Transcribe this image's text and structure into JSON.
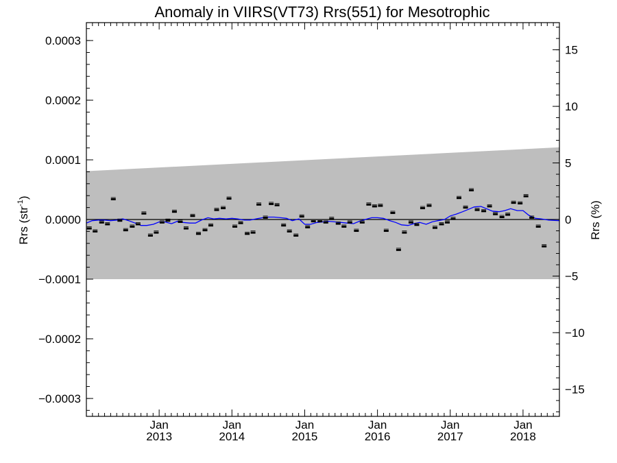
{
  "chart_data": {
    "type": "scatter",
    "title": "Anomaly in VIIRS(VT73) Rrs(551) for Mesotrophic",
    "ylabel_left": {
      "text": "Rrs (str",
      "sup": "-1",
      "close": ")"
    },
    "ylabel_right": "Rrs (%)",
    "xlim": [
      2012.0,
      2018.5
    ],
    "ylim": [
      -0.00033,
      0.00033
    ],
    "ylim_right_percent": [
      -17.4,
      17.4
    ],
    "y_ticks_left": [
      {
        "value": 0.0003,
        "label": "0.0003"
      },
      {
        "value": 0.0002,
        "label": "0.0002"
      },
      {
        "value": 0.0001,
        "label": "0.0001"
      },
      {
        "value": 0.0,
        "label": "0.0000"
      },
      {
        "value": -0.0001,
        "label": "−0.0001"
      },
      {
        "value": -0.0002,
        "label": "−0.0002"
      },
      {
        "value": -0.0003,
        "label": "−0.0003"
      }
    ],
    "y_ticks_right": [
      {
        "value": 15,
        "label": "15"
      },
      {
        "value": 10,
        "label": "10"
      },
      {
        "value": 5,
        "label": "5"
      },
      {
        "value": 0,
        "label": "0"
      },
      {
        "value": -5,
        "label": "−5"
      },
      {
        "value": -10,
        "label": "−10"
      },
      {
        "value": -15,
        "label": "−15"
      }
    ],
    "x_ticks": [
      {
        "value": 2013.0,
        "label_top": "Jan",
        "label_bottom": "2013"
      },
      {
        "value": 2014.0,
        "label_top": "Jan",
        "label_bottom": "2014"
      },
      {
        "value": 2015.0,
        "label_top": "Jan",
        "label_bottom": "2015"
      },
      {
        "value": 2016.0,
        "label_top": "Jan",
        "label_bottom": "2016"
      },
      {
        "value": 2017.0,
        "label_top": "Jan",
        "label_bottom": "2017"
      },
      {
        "value": 2018.0,
        "label_top": "Jan",
        "label_bottom": "2018"
      }
    ],
    "grey_band": {
      "x": [
        2012.0,
        2018.5
      ],
      "upper": [
        8.1e-05,
        0.000121
      ],
      "lower": [
        -0.0001,
        -0.0001
      ],
      "color": "#bebebe"
    },
    "zero_line": 0.0,
    "points": [
      [
        2012.04,
        -1.5e-05
      ],
      [
        2012.12,
        -2e-05
      ],
      [
        2012.21,
        -5e-06
      ],
      [
        2012.29,
        -8e-06
      ],
      [
        2012.37,
        3.4e-05
      ],
      [
        2012.46,
        -2e-06
      ],
      [
        2012.54,
        -1.8e-05
      ],
      [
        2012.63,
        -1.2e-05
      ],
      [
        2012.71,
        -8e-06
      ],
      [
        2012.79,
        1e-05
      ],
      [
        2012.88,
        -2.7e-05
      ],
      [
        2012.96,
        -2.2e-05
      ],
      [
        2013.04,
        -5e-06
      ],
      [
        2013.12,
        -2e-06
      ],
      [
        2013.21,
        1.3e-05
      ],
      [
        2013.29,
        -4e-06
      ],
      [
        2013.37,
        -1.5e-05
      ],
      [
        2013.46,
        6e-06
      ],
      [
        2013.54,
        -2.4e-05
      ],
      [
        2013.63,
        -1.8e-05
      ],
      [
        2013.71,
        -1e-05
      ],
      [
        2013.79,
        1.6e-05
      ],
      [
        2013.88,
        1.9e-05
      ],
      [
        2013.96,
        3.5e-05
      ],
      [
        2014.04,
        -1.2e-05
      ],
      [
        2014.12,
        -6e-06
      ],
      [
        2014.21,
        -2.4e-05
      ],
      [
        2014.29,
        -2.2e-05
      ],
      [
        2014.37,
        2.5e-05
      ],
      [
        2014.46,
        3e-06
      ],
      [
        2014.54,
        2.6e-05
      ],
      [
        2014.62,
        2.4e-05
      ],
      [
        2014.71,
        -1e-05
      ],
      [
        2014.79,
        -2e-05
      ],
      [
        2014.88,
        -2.7e-05
      ],
      [
        2014.96,
        5e-06
      ],
      [
        2015.04,
        -1.3e-05
      ],
      [
        2015.12,
        -3e-06
      ],
      [
        2015.21,
        -3e-06
      ],
      [
        2015.29,
        -5e-06
      ],
      [
        2015.37,
        1e-06
      ],
      [
        2015.46,
        -7e-06
      ],
      [
        2015.54,
        -1.2e-05
      ],
      [
        2015.62,
        -5e-06
      ],
      [
        2015.71,
        -1.9e-05
      ],
      [
        2015.79,
        -5e-06
      ],
      [
        2015.88,
        2.5e-05
      ],
      [
        2015.96,
        2.2e-05
      ],
      [
        2016.04,
        2.3e-05
      ],
      [
        2016.12,
        -1.9e-05
      ],
      [
        2016.21,
        1.1e-05
      ],
      [
        2016.29,
        -5.1e-05
      ],
      [
        2016.37,
        -2.2e-05
      ],
      [
        2016.46,
        -5e-06
      ],
      [
        2016.54,
        -9e-06
      ],
      [
        2016.62,
        1.9e-05
      ],
      [
        2016.71,
        2.3e-05
      ],
      [
        2016.79,
        -1.4e-05
      ],
      [
        2016.88,
        -8e-06
      ],
      [
        2016.96,
        -5e-06
      ],
      [
        2017.04,
        1e-06
      ],
      [
        2017.12,
        3.6e-05
      ],
      [
        2017.21,
        2e-05
      ],
      [
        2017.29,
        4.9e-05
      ],
      [
        2017.37,
        1.6e-05
      ],
      [
        2017.46,
        1.4e-05
      ],
      [
        2017.54,
        2.2e-05
      ],
      [
        2017.62,
        9e-06
      ],
      [
        2017.71,
        4e-06
      ],
      [
        2017.79,
        8e-06
      ],
      [
        2017.87,
        2.8e-05
      ],
      [
        2017.96,
        2.7e-05
      ],
      [
        2018.04,
        3.9e-05
      ],
      [
        2018.12,
        3e-06
      ],
      [
        2018.21,
        -1.2e-05
      ],
      [
        2018.29,
        -4.5e-05
      ]
    ],
    "smooth_line": {
      "color": "#0000ff",
      "points": [
        [
          2012.0,
          -6e-06
        ],
        [
          2012.08,
          -2e-06
        ],
        [
          2012.17,
          -1e-06
        ],
        [
          2012.25,
          -1e-06
        ],
        [
          2012.33,
          -2e-06
        ],
        [
          2012.42,
          -1e-06
        ],
        [
          2012.5,
          1e-06
        ],
        [
          2012.58,
          -2e-06
        ],
        [
          2012.67,
          -6e-06
        ],
        [
          2012.75,
          -1e-05
        ],
        [
          2012.83,
          -1e-05
        ],
        [
          2012.92,
          -8e-06
        ],
        [
          2013.0,
          -4e-06
        ],
        [
          2013.08,
          -4e-06
        ],
        [
          2013.17,
          -7e-06
        ],
        [
          2013.25,
          -3e-06
        ],
        [
          2013.33,
          -5e-06
        ],
        [
          2013.42,
          -6e-06
        ],
        [
          2013.5,
          -6e-06
        ],
        [
          2013.58,
          -1e-06
        ],
        [
          2013.67,
          3e-06
        ],
        [
          2013.75,
          1e-06
        ],
        [
          2013.83,
          2e-06
        ],
        [
          2013.92,
          1e-06
        ],
        [
          2014.0,
          2e-06
        ],
        [
          2014.08,
          1e-06
        ],
        [
          2014.17,
          -1e-06
        ],
        [
          2014.25,
          -1e-06
        ],
        [
          2014.33,
          1e-06
        ],
        [
          2014.42,
          3e-06
        ],
        [
          2014.5,
          4e-06
        ],
        [
          2014.58,
          4e-06
        ],
        [
          2014.67,
          3e-06
        ],
        [
          2014.75,
          2e-06
        ],
        [
          2014.83,
          -2e-06
        ],
        [
          2014.92,
          1e-06
        ],
        [
          2015.0,
          -8e-06
        ],
        [
          2015.08,
          -8e-06
        ],
        [
          2015.17,
          -5e-06
        ],
        [
          2015.25,
          -4e-06
        ],
        [
          2015.33,
          -3e-06
        ],
        [
          2015.42,
          -4e-06
        ],
        [
          2015.5,
          -5e-06
        ],
        [
          2015.58,
          -6e-06
        ],
        [
          2015.67,
          -7e-06
        ],
        [
          2015.75,
          -3e-06
        ],
        [
          2015.83,
          0.0
        ],
        [
          2015.92,
          3e-06
        ],
        [
          2016.0,
          3e-06
        ],
        [
          2016.08,
          2e-06
        ],
        [
          2016.17,
          -2e-06
        ],
        [
          2016.25,
          -5e-06
        ],
        [
          2016.33,
          -9e-06
        ],
        [
          2016.42,
          -1e-05
        ],
        [
          2016.5,
          -7e-06
        ],
        [
          2016.58,
          -5e-06
        ],
        [
          2016.67,
          -8e-06
        ],
        [
          2016.75,
          -4e-06
        ],
        [
          2016.83,
          -2e-06
        ],
        [
          2016.92,
          0.0
        ],
        [
          2017.0,
          6e-06
        ],
        [
          2017.08,
          9e-06
        ],
        [
          2017.17,
          1.3e-05
        ],
        [
          2017.25,
          1.7e-05
        ],
        [
          2017.33,
          2.1e-05
        ],
        [
          2017.42,
          2.2e-05
        ],
        [
          2017.5,
          1.8e-05
        ],
        [
          2017.58,
          1.4e-05
        ],
        [
          2017.67,
          1.3e-05
        ],
        [
          2017.75,
          1.5e-05
        ],
        [
          2017.83,
          1.8e-05
        ],
        [
          2017.92,
          1.5e-05
        ],
        [
          2018.0,
          1.5e-05
        ],
        [
          2018.08,
          7e-06
        ],
        [
          2018.17,
          2e-06
        ],
        [
          2018.25,
          1e-06
        ],
        [
          2018.35,
          -1e-06
        ],
        [
          2018.5,
          -2e-06
        ]
      ]
    }
  }
}
